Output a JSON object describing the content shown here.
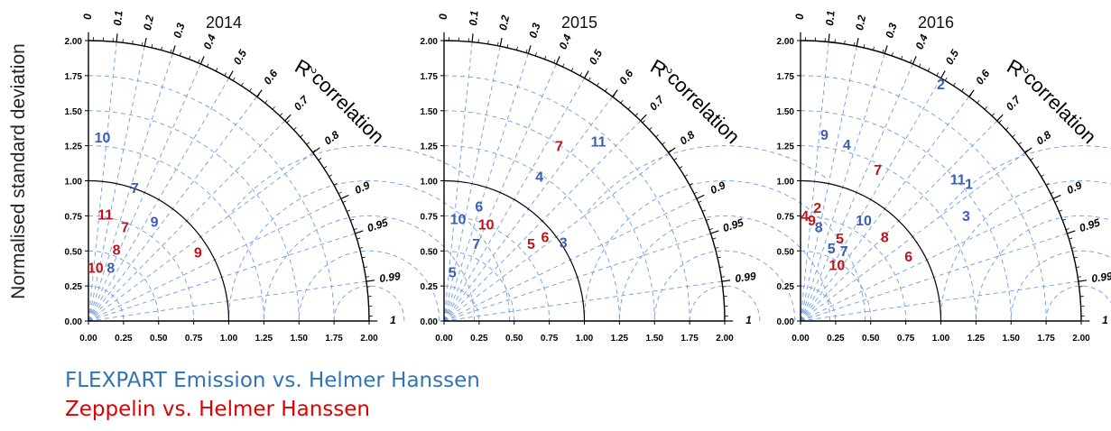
{
  "figure": {
    "ylabel": "Normalised standard deviation"
  },
  "chart_data": [
    {
      "type": "scatter",
      "subtype": "taylor-diagram",
      "title": "2014",
      "xlim": [
        0,
        2
      ],
      "ylim": [
        0,
        2
      ],
      "ticks": [
        "0.00",
        "0.25",
        "0.50",
        "0.75",
        "1.00",
        "1.25",
        "1.50",
        "1.75",
        "2.00"
      ],
      "r2_label": "R",
      "r2_exponent": "2",
      "correlation_label": "correlation",
      "correlation_ticks": [
        "0",
        "0.1",
        "0.2",
        "0.3",
        "0.4",
        "0.5",
        "0.6",
        "0.7",
        "0.8",
        "0.9",
        "0.95",
        "0.99",
        "1"
      ],
      "series": [
        {
          "name": "FLEXPART Emission vs. Helmer Hanssen",
          "color": "#3a5fb5",
          "points": [
            {
              "label": "10",
              "x": 0.1,
              "y": 1.3
            },
            {
              "label": "7",
              "x": 0.33,
              "y": 0.94
            },
            {
              "label": "9",
              "x": 0.47,
              "y": 0.7
            },
            {
              "label": "8",
              "x": 0.16,
              "y": 0.37
            }
          ]
        },
        {
          "name": "Zeppelin vs. Helmer Hanssen",
          "color": "#c0141c",
          "points": [
            {
              "label": "11",
              "x": 0.12,
              "y": 0.75
            },
            {
              "label": "7",
              "x": 0.26,
              "y": 0.66
            },
            {
              "label": "8",
              "x": 0.2,
              "y": 0.5
            },
            {
              "label": "10",
              "x": 0.05,
              "y": 0.37
            },
            {
              "label": "9",
              "x": 0.78,
              "y": 0.48
            }
          ]
        }
      ]
    },
    {
      "type": "scatter",
      "subtype": "taylor-diagram",
      "title": "2015",
      "xlim": [
        0,
        2
      ],
      "ylim": [
        0,
        2
      ],
      "ticks": [
        "0.00",
        "0.25",
        "0.50",
        "0.75",
        "1.00",
        "1.25",
        "1.50",
        "1.75",
        "2.00"
      ],
      "r2_label": "R",
      "r2_exponent": "2",
      "correlation_label": "correlation",
      "correlation_ticks": [
        "0",
        "0.1",
        "0.2",
        "0.3",
        "0.4",
        "0.5",
        "0.6",
        "0.7",
        "0.8",
        "0.9",
        "0.95",
        "0.99",
        "1"
      ],
      "series": [
        {
          "name": "FLEXPART Emission vs. Helmer Hanssen",
          "color": "#3a5fb5",
          "points": [
            {
              "label": "11",
              "x": 1.1,
              "y": 1.27
            },
            {
              "label": "4",
              "x": 0.68,
              "y": 1.02
            },
            {
              "label": "6",
              "x": 0.25,
              "y": 0.81
            },
            {
              "label": "10",
              "x": 0.1,
              "y": 0.72
            },
            {
              "label": "3",
              "x": 0.85,
              "y": 0.55
            },
            {
              "label": "7",
              "x": 0.23,
              "y": 0.54
            },
            {
              "label": "5",
              "x": 0.06,
              "y": 0.34
            }
          ]
        },
        {
          "name": "Zeppelin vs. Helmer Hanssen",
          "color": "#c0141c",
          "points": [
            {
              "label": "7",
              "x": 0.82,
              "y": 1.24
            },
            {
              "label": "10",
              "x": 0.3,
              "y": 0.68
            },
            {
              "label": "6",
              "x": 0.72,
              "y": 0.59
            },
            {
              "label": "5",
              "x": 0.62,
              "y": 0.54
            }
          ]
        }
      ]
    },
    {
      "type": "scatter",
      "subtype": "taylor-diagram",
      "title": "2016",
      "xlim": [
        0,
        2
      ],
      "ylim": [
        0,
        2
      ],
      "ticks": [
        "0.00",
        "0.25",
        "0.50",
        "0.75",
        "1.00",
        "1.25",
        "1.50",
        "1.75",
        "2.00"
      ],
      "r2_label": "R",
      "r2_exponent": "2",
      "correlation_label": "correlation",
      "correlation_ticks": [
        "0",
        "0.1",
        "0.2",
        "0.3",
        "0.4",
        "0.5",
        "0.6",
        "0.7",
        "0.8",
        "0.9",
        "0.95",
        "0.99",
        "1"
      ],
      "series": [
        {
          "name": "FLEXPART Emission vs. Helmer Hanssen",
          "color": "#3a5fb5",
          "points": [
            {
              "label": "2",
              "x": 1.0,
              "y": 1.68
            },
            {
              "label": "9",
              "x": 0.17,
              "y": 1.32
            },
            {
              "label": "4",
              "x": 0.33,
              "y": 1.25
            },
            {
              "label": "11",
              "x": 1.12,
              "y": 1.0
            },
            {
              "label": "1",
              "x": 1.2,
              "y": 0.97
            },
            {
              "label": "3",
              "x": 1.18,
              "y": 0.74
            },
            {
              "label": "10",
              "x": 0.45,
              "y": 0.71
            },
            {
              "label": "8",
              "x": 0.13,
              "y": 0.66
            },
            {
              "label": "5",
              "x": 0.22,
              "y": 0.51
            },
            {
              "label": "7",
              "x": 0.31,
              "y": 0.49
            }
          ]
        },
        {
          "name": "Zeppelin vs. Helmer Hanssen",
          "color": "#c0141c",
          "points": [
            {
              "label": "7",
              "x": 0.55,
              "y": 1.07
            },
            {
              "label": "2",
              "x": 0.12,
              "y": 0.8
            },
            {
              "label": "4",
              "x": 0.03,
              "y": 0.74
            },
            {
              "label": "9",
              "x": 0.08,
              "y": 0.71
            },
            {
              "label": "8",
              "x": 0.6,
              "y": 0.59
            },
            {
              "label": "5",
              "x": 0.28,
              "y": 0.58
            },
            {
              "label": "6",
              "x": 0.77,
              "y": 0.45
            },
            {
              "label": "10",
              "x": 0.26,
              "y": 0.39
            }
          ]
        }
      ]
    }
  ],
  "legend": [
    {
      "label": "FLEXPART Emission vs. Helmer Hanssen",
      "color": "#2f74b5"
    },
    {
      "label": "Zeppelin vs. Helmer Hanssen",
      "color": "#e00000"
    }
  ]
}
